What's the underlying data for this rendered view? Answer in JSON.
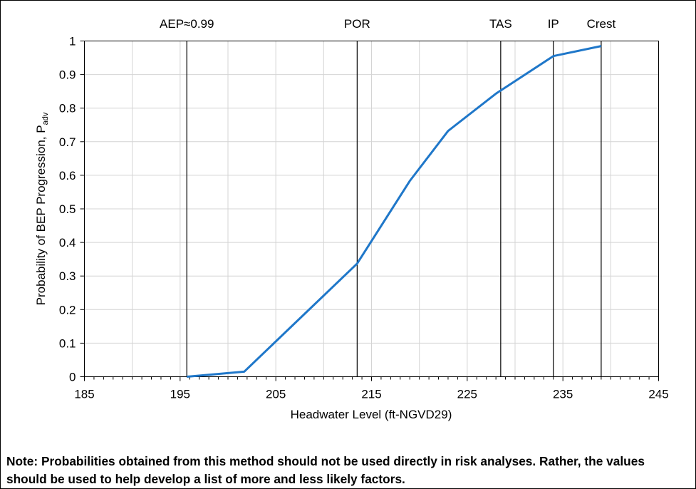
{
  "chart_data": {
    "type": "line",
    "xlabel": "Headwater Level (ft-NGVD29)",
    "ylabel_main": "Probability of BEP Progression, P",
    "ylabel_sub": "adv",
    "xlim": [
      185,
      245
    ],
    "ylim": [
      0,
      1
    ],
    "x_ticks": [
      "185",
      "195",
      "205",
      "215",
      "225",
      "235",
      "245"
    ],
    "y_ticks": [
      "0",
      "0.1",
      "0.2",
      "0.3",
      "0.4",
      "0.5",
      "0.6",
      "0.7",
      "0.8",
      "0.9",
      "1"
    ],
    "grid": true,
    "series": [
      {
        "color": "#1f77c9",
        "x": [
          195.7,
          201.7,
          213.5,
          219.0,
          223.0,
          228.0,
          234.0,
          239.0
        ],
        "y": [
          0.0,
          0.015,
          0.337,
          0.583,
          0.732,
          0.843,
          0.955,
          0.985
        ]
      }
    ],
    "reference_lines": [
      {
        "label": "AEP≈0.99",
        "x": 195.7
      },
      {
        "label": "POR",
        "x": 213.5
      },
      {
        "label": "TAS",
        "x": 228.5
      },
      {
        "label": "IP",
        "x": 234.0
      },
      {
        "label": "Crest",
        "x": 239.0
      }
    ]
  },
  "note": "Note: Probabilities obtained from this method should not be used directly in risk analyses. Rather, the values should be used to help develop a list of more and less likely factors."
}
